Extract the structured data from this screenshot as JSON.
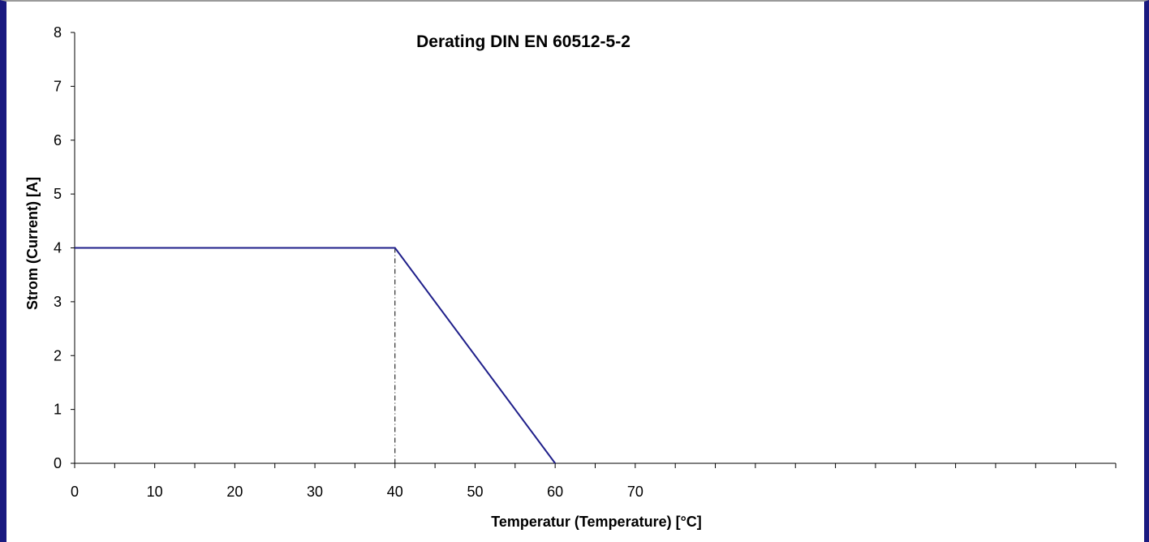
{
  "chart_data": {
    "type": "line",
    "title": "Derating DIN EN 60512-5-2",
    "xlabel": "Temperatur (Temperature) [°C]",
    "ylabel": "Strom (Current) [A]",
    "xlim": [
      0,
      130
    ],
    "ylim": [
      0,
      8
    ],
    "x_ticks_labeled": [
      0,
      10,
      20,
      30,
      40,
      50,
      60,
      70
    ],
    "x_minor_tick_step": 5,
    "y_ticks": [
      0,
      1,
      2,
      3,
      4,
      5,
      6,
      7,
      8
    ],
    "series": [
      {
        "x": [
          0,
          40,
          60
        ],
        "y": [
          4,
          4,
          0
        ],
        "color": "#1f1f8a"
      }
    ],
    "reference_lines": [
      {
        "type": "vertical",
        "x": 40,
        "y_from": 0,
        "y_to": 4,
        "style": "dash-dot"
      }
    ],
    "grid": false,
    "legend": "none"
  },
  "colors": {
    "frame_left": "#1a1a80",
    "line": "#1f1f8a",
    "axis": "#000000"
  }
}
